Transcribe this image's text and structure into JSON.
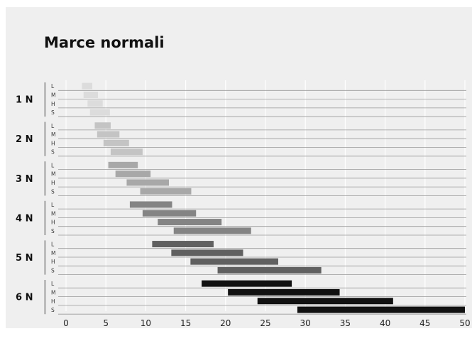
{
  "chart_data": {
    "type": "bar",
    "orientation": "horizontal-range",
    "title": "Marce normali",
    "xlabel": "",
    "ylabel": "",
    "xlim": [
      0,
      50
    ],
    "x_ticks": [
      "0",
      "5",
      "10",
      "15",
      "20",
      "25",
      "30",
      "35",
      "40",
      "45",
      "50"
    ],
    "grid": true,
    "groups": [
      {
        "label": "1 N",
        "color": "#dcdcdc",
        "rows": [
          {
            "label": "L",
            "start": 2,
            "end": 3.3
          },
          {
            "label": "M",
            "start": 2.2,
            "end": 4
          },
          {
            "label": "H",
            "start": 2.7,
            "end": 4.6
          },
          {
            "label": "S",
            "start": 3,
            "end": 5.5
          }
        ]
      },
      {
        "label": "2 N",
        "color": "#c4c4c4",
        "rows": [
          {
            "label": "L",
            "start": 3.6,
            "end": 5.6
          },
          {
            "label": "M",
            "start": 3.9,
            "end": 6.7
          },
          {
            "label": "H",
            "start": 4.7,
            "end": 7.9
          },
          {
            "label": "S",
            "start": 5.6,
            "end": 9.6
          }
        ]
      },
      {
        "label": "3 N",
        "color": "#a8a8a8",
        "rows": [
          {
            "label": "L",
            "start": 5.3,
            "end": 9
          },
          {
            "label": "M",
            "start": 6.2,
            "end": 10.6
          },
          {
            "label": "H",
            "start": 7.6,
            "end": 12.9
          },
          {
            "label": "S",
            "start": 9.3,
            "end": 15.7
          }
        ]
      },
      {
        "label": "4 N",
        "color": "#848484",
        "rows": [
          {
            "label": "L",
            "start": 8,
            "end": 13.3
          },
          {
            "label": "M",
            "start": 9.6,
            "end": 16.3
          },
          {
            "label": "H",
            "start": 11.5,
            "end": 19.5
          },
          {
            "label": "S",
            "start": 13.5,
            "end": 23.2
          }
        ]
      },
      {
        "label": "5 N",
        "color": "#606060",
        "rows": [
          {
            "label": "L",
            "start": 10.8,
            "end": 18.5
          },
          {
            "label": "M",
            "start": 13.2,
            "end": 22.2
          },
          {
            "label": "H",
            "start": 15.6,
            "end": 26.6
          },
          {
            "label": "S",
            "start": 19,
            "end": 32
          }
        ]
      },
      {
        "label": "6 N",
        "color": "#111111",
        "rows": [
          {
            "label": "L",
            "start": 17,
            "end": 28.3
          },
          {
            "label": "M",
            "start": 20.3,
            "end": 34.3
          },
          {
            "label": "H",
            "start": 24,
            "end": 41
          },
          {
            "label": "S",
            "start": 29,
            "end": 50
          }
        ]
      }
    ]
  }
}
